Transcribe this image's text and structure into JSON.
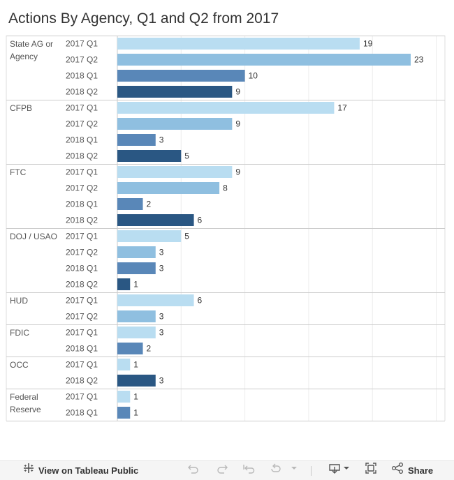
{
  "chart_data": {
    "type": "bar",
    "orientation": "horizontal",
    "title": "Actions By Agency, Q1 and Q2 from 2017",
    "xlim": [
      0,
      26
    ],
    "grid": true,
    "period_colors": {
      "2017 Q1": "#b9ddf1",
      "2017 Q2": "#8fbfe0",
      "2018 Q1": "#5987b8",
      "2018 Q2": "#2a5783"
    },
    "groups": [
      {
        "agency": [
          "State AG or",
          "Agency"
        ],
        "bars": [
          {
            "period": "2017 Q1",
            "value": 19
          },
          {
            "period": "2017 Q2",
            "value": 23
          },
          {
            "period": "2018 Q1",
            "value": 10
          },
          {
            "period": "2018 Q2",
            "value": 9
          }
        ]
      },
      {
        "agency": [
          "CFPB"
        ],
        "bars": [
          {
            "period": "2017 Q1",
            "value": 17
          },
          {
            "period": "2017 Q2",
            "value": 9
          },
          {
            "period": "2018 Q1",
            "value": 3
          },
          {
            "period": "2018 Q2",
            "value": 5
          }
        ]
      },
      {
        "agency": [
          "FTC"
        ],
        "bars": [
          {
            "period": "2017 Q1",
            "value": 9
          },
          {
            "period": "2017 Q2",
            "value": 8
          },
          {
            "period": "2018 Q1",
            "value": 2
          },
          {
            "period": "2018 Q2",
            "value": 6
          }
        ]
      },
      {
        "agency": [
          "DOJ / USAO"
        ],
        "bars": [
          {
            "period": "2017 Q1",
            "value": 5
          },
          {
            "period": "2017 Q2",
            "value": 3
          },
          {
            "period": "2018 Q1",
            "value": 3
          },
          {
            "period": "2018 Q2",
            "value": 1
          }
        ]
      },
      {
        "agency": [
          "HUD"
        ],
        "bars": [
          {
            "period": "2017 Q1",
            "value": 6
          },
          {
            "period": "2017 Q2",
            "value": 3
          }
        ]
      },
      {
        "agency": [
          "FDIC"
        ],
        "bars": [
          {
            "period": "2017 Q1",
            "value": 3
          },
          {
            "period": "2018 Q1",
            "value": 2
          }
        ]
      },
      {
        "agency": [
          "OCC"
        ],
        "bars": [
          {
            "period": "2017 Q1",
            "value": 1
          },
          {
            "period": "2018 Q2",
            "value": 3
          }
        ]
      },
      {
        "agency": [
          "Federal",
          "Reserve"
        ],
        "bars": [
          {
            "period": "2017 Q1",
            "value": 1
          },
          {
            "period": "2018 Q1",
            "value": 1
          }
        ]
      }
    ]
  },
  "toolbar": {
    "view_label": "View on Tableau Public",
    "share_label": "Share",
    "icons": {
      "tableau": "tableau-logo-icon",
      "undo": "undo-icon",
      "redo": "redo-icon",
      "revert": "revert-icon",
      "refresh": "refresh-icon",
      "download": "download-icon",
      "fullscreen": "fullscreen-icon",
      "share": "share-icon"
    }
  }
}
